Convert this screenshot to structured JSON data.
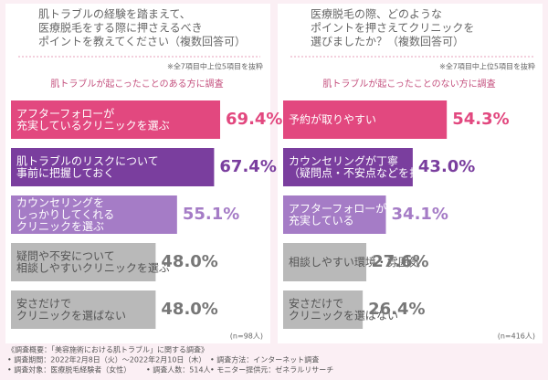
{
  "chart_data": [
    {
      "type": "bar",
      "title": [
        "肌トラブルの経験を踏まえて、",
        "医療脱毛をする際に押さえるべき",
        "ポイントを教えてください（複数回答可）"
      ],
      "note": "※全7項目中上位5項目を抜粋",
      "subtitle": "肌トラブルが起こったことのある方に調査",
      "categories": [
        [
          "アフターフォローが",
          "充実しているクリニックを選ぶ"
        ],
        [
          "肌トラブルのリスクについて",
          "事前に把握しておく"
        ],
        [
          "カウンセリングを",
          "しっかりしてくれる",
          "クリニックを選ぶ"
        ],
        [
          "疑問や不安について",
          "相談しやすいクリニックを選ぶ"
        ],
        [
          "安さだけで",
          "クリニックを選ばない"
        ]
      ],
      "values": [
        69.4,
        67.4,
        55.1,
        48.0,
        48.0
      ],
      "value_labels": [
        "69.4%",
        "67.4%",
        "55.1%",
        "48.0%",
        "48.0%"
      ],
      "colors": [
        "#e2487f",
        "#7a3e9e",
        "#a57cc6",
        "#b9b9b9",
        "#b9b9b9"
      ],
      "label_colors": [
        "#ffffff",
        "#ffffff",
        "#ffffff",
        "#555555",
        "#555555"
      ],
      "n": "(n=98人)"
    },
    {
      "type": "bar",
      "title": [
        "医療脱毛の際、どのような",
        "ポイントを押さえてクリニックを",
        "選びましたか？（複数回答可）"
      ],
      "note": "※全7項目中上位5項目を抜粋",
      "subtitle": "肌トラブルが起こったことのない方に調査",
      "categories": [
        [
          "予約が取りやすい"
        ],
        [
          "カウンセリングが丁寧",
          "（疑問点・不安点などを払拭できる）"
        ],
        [
          "アフターフォローが",
          "充実している"
        ],
        [
          "相談しやすい環境・雰囲気"
        ],
        [
          "安さだけで",
          "クリニックを選ばない"
        ]
      ],
      "values": [
        54.3,
        43.0,
        34.1,
        27.6,
        26.4
      ],
      "value_labels": [
        "54.3%",
        "43.0%",
        "34.1%",
        "27.6%",
        "26.4%"
      ],
      "colors": [
        "#e2487f",
        "#7a3e9e",
        "#a57cc6",
        "#b9b9b9",
        "#b9b9b9"
      ],
      "label_colors": [
        "#ffffff",
        "#ffffff",
        "#ffffff",
        "#555555",
        "#555555"
      ],
      "n": "(n=416人)"
    }
  ],
  "footer": {
    "heading": "《調査概要：「美容施術における肌トラブル」に関する調査》",
    "items": [
      "• 調査期間：2022年2月8日（火）～2022年2月10日（木）",
      "• 調査方法：インターネット調査",
      "• 調査対象：医療脱毛経験者（女性）",
      "• 調査人数：514人",
      "• モニター提供元：ゼネラルリサーチ"
    ]
  }
}
